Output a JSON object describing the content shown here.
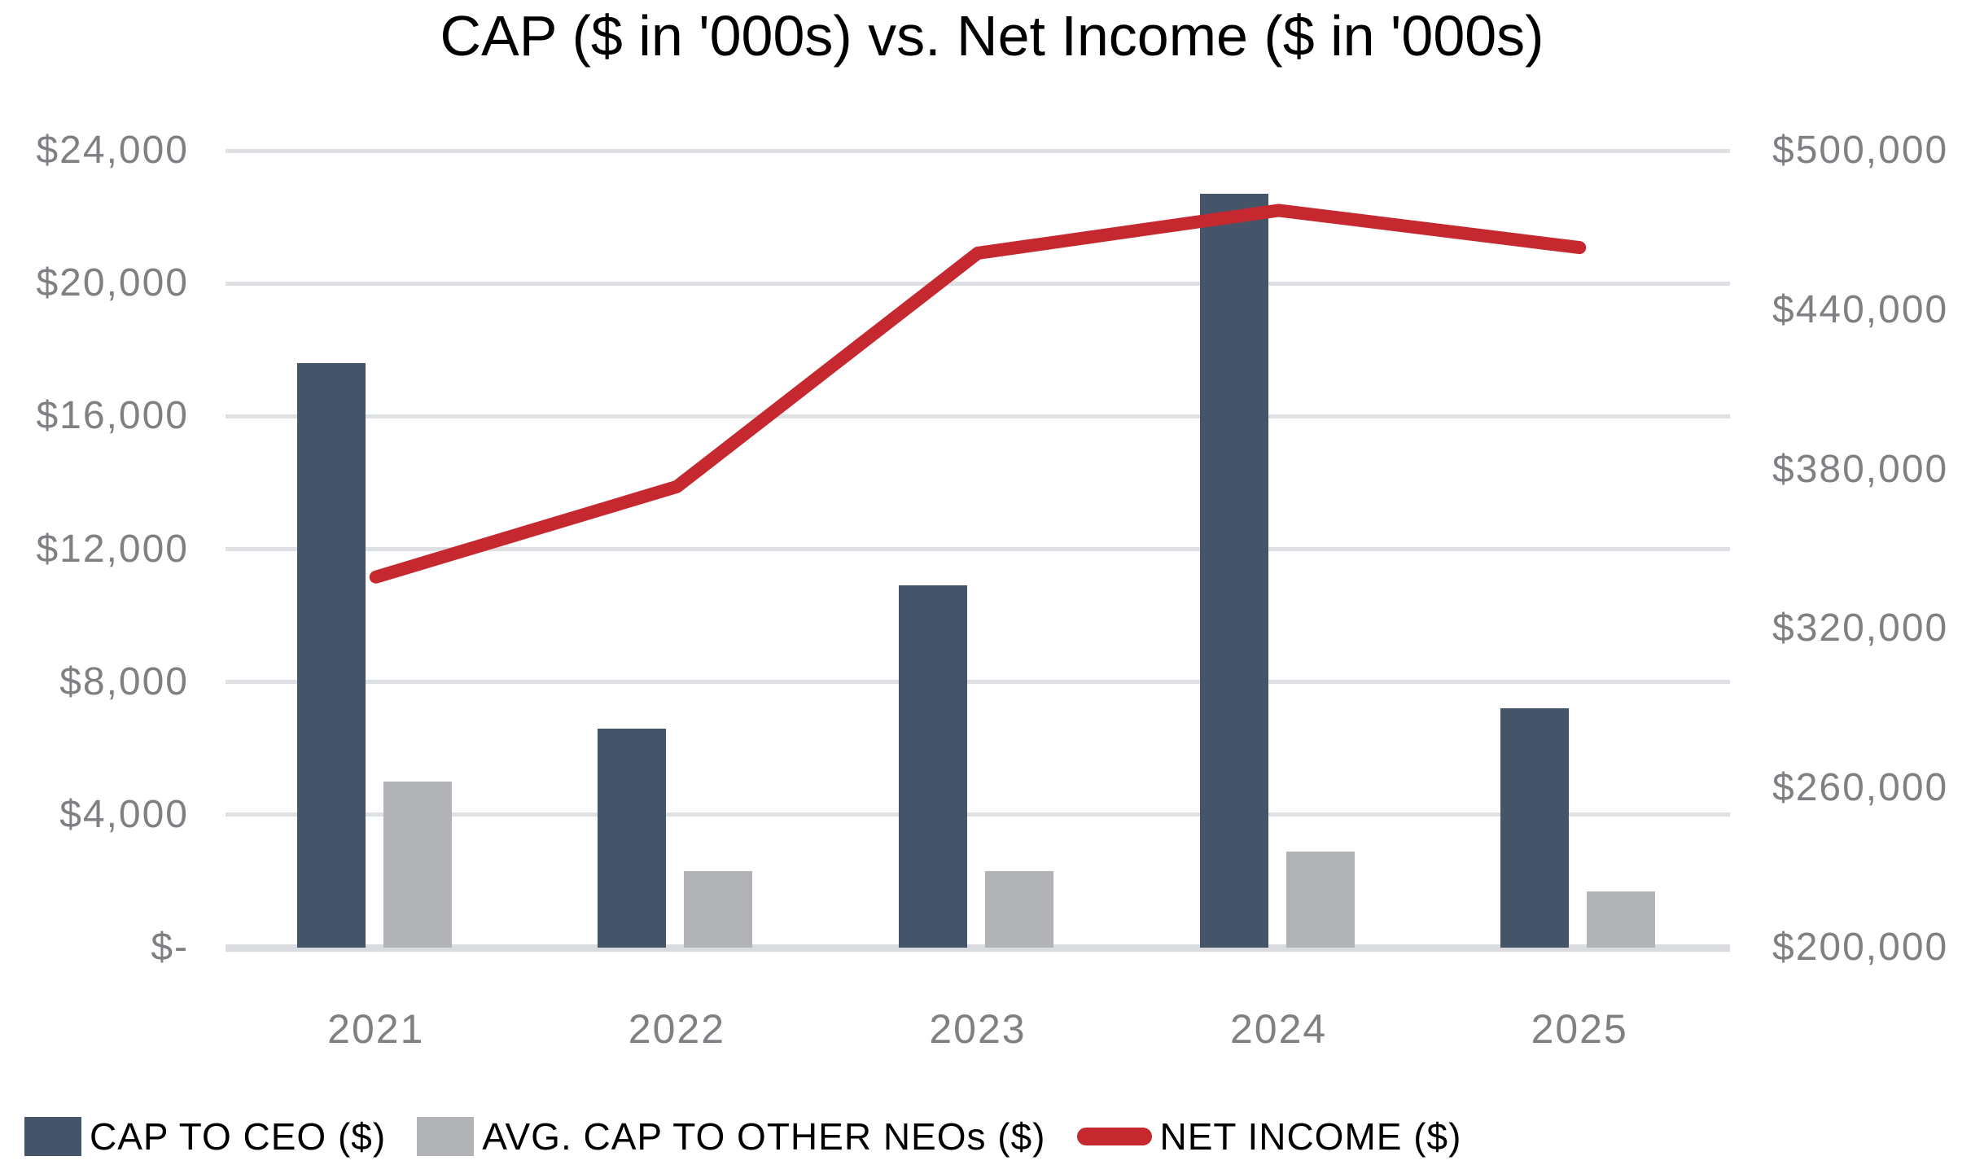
{
  "title": "CAP ($ in '000s) vs. Net Income ($ in '000s)",
  "colors": {
    "title_text": "#000000",
    "axis_label_text": "#808084",
    "legend_text": "#000000",
    "gridline": "#dfe0e3",
    "axis_baseline": "#d9dbde",
    "background": "#ffffff"
  },
  "chart_data": {
    "type": "combo-bar-line",
    "title": "CAP ($ in '000s) vs. Net Income ($ in '000s)",
    "categories": [
      "2021",
      "2022",
      "2023",
      "2024",
      "2025"
    ],
    "series": [
      {
        "name": "CAP TO CEO ($)",
        "type": "bar",
        "axis": "left",
        "color": "#445469",
        "values": [
          17600,
          6600,
          10900,
          22700,
          7200
        ]
      },
      {
        "name": "AVG. CAP TO OTHER NEOs ($)",
        "type": "bar",
        "axis": "left",
        "color": "#b2b3b6",
        "values": [
          5000,
          2300,
          2300,
          2900,
          1700
        ]
      },
      {
        "name": "NET INCOME ($)",
        "type": "line",
        "axis": "right",
        "color": "#c5292f",
        "values": [
          339500,
          373500,
          461400,
          477500,
          463500
        ]
      }
    ],
    "left_axis": {
      "min": 0,
      "max": 24000,
      "step": 4000,
      "labels": [
        "$24,000",
        "$20,000",
        "$16,000",
        "$12,000",
        "$8,000",
        "$4,000",
        "$-"
      ]
    },
    "right_axis": {
      "min": 200000,
      "max": 500000,
      "step": 60000,
      "labels": [
        "$500,000",
        "$440,000",
        "$380,000",
        "$320,000",
        "$260,000",
        "$200,000"
      ]
    },
    "grid": true,
    "legend_position": "bottom-left",
    "xlabel": "",
    "ylabel_left": "",
    "ylabel_right": ""
  }
}
